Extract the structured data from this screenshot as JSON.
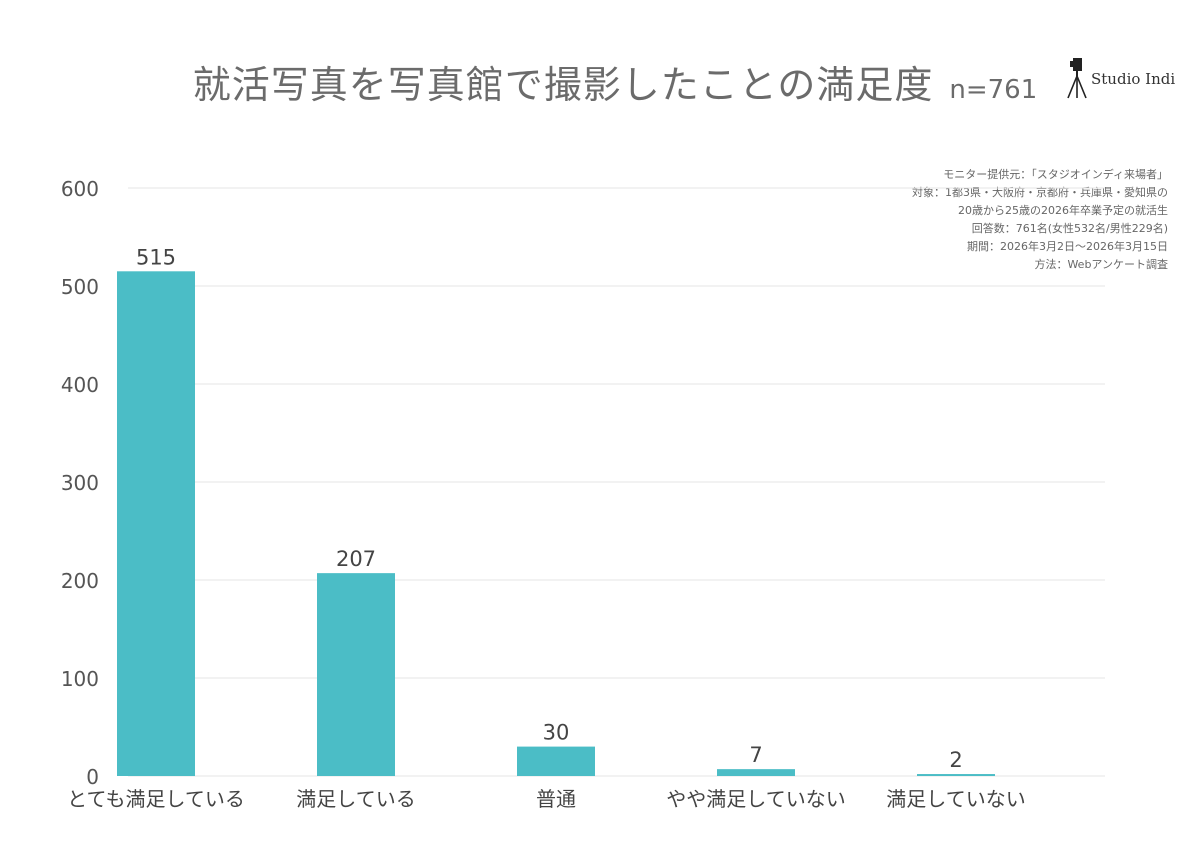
{
  "header": {
    "title": "就活写真を写真館で撮影したことの満足度",
    "sample": "n=761",
    "brand": "Studio Indi"
  },
  "notes": [
    "モニター提供元：「スタジオインディ来場者」",
    "対象：1都3県・大阪府・京都府・兵庫県・愛知県の",
    "20歳から25歳の2026年卒業予定の就活生",
    "回答数：761名(女性532名/男性229名)",
    "期間：2026年3月2日〜2026年3月15日",
    "方法：Webアンケート調査"
  ],
  "colors": {
    "bar": "#4bbdc6",
    "grid": "#e6e6e6"
  },
  "chart_data": {
    "type": "bar",
    "title": "就活写真を写真館で撮影したことの満足度",
    "categories": [
      "とても満足している",
      "満足している",
      "普通",
      "やや満足していない",
      "満足していない"
    ],
    "values": [
      515,
      207,
      30,
      7,
      2
    ],
    "ylim": [
      0,
      600
    ],
    "yticks": [
      0,
      100,
      200,
      300,
      400,
      500,
      600
    ],
    "grid": true,
    "data_labels": true
  }
}
